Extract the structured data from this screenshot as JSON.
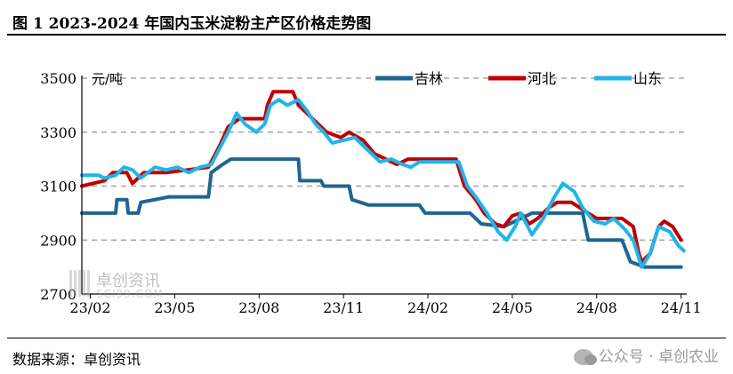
{
  "header": {
    "title": "图 1  2023-2024 年国内玉米淀粉主产区价格走势图"
  },
  "footer": {
    "source": "数据来源：卓创资讯",
    "wechat": "公众号 · 卓创农业"
  },
  "watermark": {
    "name": "卓创资讯",
    "url": "SCI99.COM"
  },
  "chart_data": {
    "type": "line",
    "ylabel": "元/吨",
    "ylim": [
      2700,
      3500
    ],
    "yticks": [
      2700,
      2900,
      3100,
      3300,
      3500
    ],
    "x_ticks": [
      "23/02",
      "23/05",
      "23/08",
      "23/11",
      "24/02",
      "24/05",
      "24/08",
      "24/11"
    ],
    "x_range": [
      0,
      21.5
    ],
    "grid": "horizontal-dashed",
    "legend": "top-right",
    "series": [
      {
        "name": "吉林",
        "color": "#1f6591",
        "points": [
          [
            0,
            3000
          ],
          [
            1.2,
            3000
          ],
          [
            1.25,
            3050
          ],
          [
            1.6,
            3050
          ],
          [
            1.65,
            3000
          ],
          [
            2.0,
            3000
          ],
          [
            2.1,
            3040
          ],
          [
            3.1,
            3060
          ],
          [
            4.5,
            3060
          ],
          [
            4.6,
            3150
          ],
          [
            5.0,
            3180
          ],
          [
            5.3,
            3200
          ],
          [
            7.2,
            3200
          ],
          [
            7.7,
            3200
          ],
          [
            7.75,
            3120
          ],
          [
            8.5,
            3120
          ],
          [
            8.6,
            3100
          ],
          [
            9.5,
            3100
          ],
          [
            9.6,
            3050
          ],
          [
            10.2,
            3030
          ],
          [
            12.0,
            3030
          ],
          [
            12.2,
            3000
          ],
          [
            13.8,
            3000
          ],
          [
            14.2,
            2960
          ],
          [
            15.0,
            2950
          ],
          [
            16.0,
            3000
          ],
          [
            17.8,
            3000
          ],
          [
            18.0,
            2900
          ],
          [
            19.2,
            2900
          ],
          [
            19.5,
            2820
          ],
          [
            20.0,
            2800
          ],
          [
            21.3,
            2800
          ]
        ]
      },
      {
        "name": "河北",
        "color": "#c00000",
        "points": [
          [
            0,
            3100
          ],
          [
            0.8,
            3120
          ],
          [
            1.1,
            3150
          ],
          [
            1.6,
            3150
          ],
          [
            1.8,
            3110
          ],
          [
            2.2,
            3150
          ],
          [
            3.0,
            3150
          ],
          [
            4.5,
            3170
          ],
          [
            4.9,
            3250
          ],
          [
            5.2,
            3320
          ],
          [
            5.6,
            3350
          ],
          [
            6.5,
            3350
          ],
          [
            6.6,
            3400
          ],
          [
            6.8,
            3450
          ],
          [
            7.5,
            3450
          ],
          [
            7.7,
            3400
          ],
          [
            8.2,
            3350
          ],
          [
            8.7,
            3300
          ],
          [
            9.2,
            3280
          ],
          [
            9.5,
            3300
          ],
          [
            10.0,
            3270
          ],
          [
            10.4,
            3220
          ],
          [
            10.8,
            3200
          ],
          [
            11.2,
            3180
          ],
          [
            11.6,
            3200
          ],
          [
            13.3,
            3200
          ],
          [
            13.6,
            3100
          ],
          [
            14.0,
            3050
          ],
          [
            14.3,
            3000
          ],
          [
            14.7,
            2960
          ],
          [
            15.0,
            2950
          ],
          [
            15.3,
            2990
          ],
          [
            15.6,
            3000
          ],
          [
            15.9,
            2960
          ],
          [
            16.2,
            2980
          ],
          [
            16.6,
            3020
          ],
          [
            16.9,
            3040
          ],
          [
            17.4,
            3040
          ],
          [
            17.7,
            3020
          ],
          [
            18.0,
            3000
          ],
          [
            18.3,
            2980
          ],
          [
            19.2,
            2980
          ],
          [
            19.6,
            2950
          ],
          [
            19.8,
            2850
          ],
          [
            19.9,
            2820
          ],
          [
            20.2,
            2850
          ],
          [
            20.5,
            2950
          ],
          [
            20.7,
            2970
          ],
          [
            21.0,
            2950
          ],
          [
            21.3,
            2900
          ]
        ]
      },
      {
        "name": "山东",
        "color": "#21b4ea",
        "points": [
          [
            0,
            3140
          ],
          [
            0.6,
            3140
          ],
          [
            0.8,
            3130
          ],
          [
            1.2,
            3140
          ],
          [
            1.5,
            3170
          ],
          [
            1.8,
            3160
          ],
          [
            2.1,
            3130
          ],
          [
            2.6,
            3170
          ],
          [
            3.0,
            3160
          ],
          [
            3.4,
            3170
          ],
          [
            3.8,
            3150
          ],
          [
            4.2,
            3170
          ],
          [
            4.6,
            3180
          ],
          [
            4.9,
            3240
          ],
          [
            5.2,
            3300
          ],
          [
            5.5,
            3370
          ],
          [
            5.8,
            3330
          ],
          [
            6.2,
            3300
          ],
          [
            6.5,
            3330
          ],
          [
            6.7,
            3400
          ],
          [
            7.0,
            3420
          ],
          [
            7.3,
            3400
          ],
          [
            7.7,
            3420
          ],
          [
            8.0,
            3380
          ],
          [
            8.3,
            3330
          ],
          [
            8.6,
            3300
          ],
          [
            8.9,
            3260
          ],
          [
            9.3,
            3270
          ],
          [
            9.7,
            3280
          ],
          [
            10.2,
            3230
          ],
          [
            10.6,
            3190
          ],
          [
            11.0,
            3200
          ],
          [
            11.4,
            3180
          ],
          [
            11.7,
            3170
          ],
          [
            12.0,
            3190
          ],
          [
            13.4,
            3190
          ],
          [
            13.7,
            3100
          ],
          [
            14.0,
            3060
          ],
          [
            14.4,
            3000
          ],
          [
            14.8,
            2930
          ],
          [
            15.1,
            2900
          ],
          [
            15.4,
            2950
          ],
          [
            15.6,
            3000
          ],
          [
            16.0,
            2920
          ],
          [
            16.4,
            2980
          ],
          [
            16.8,
            3060
          ],
          [
            17.1,
            3110
          ],
          [
            17.5,
            3080
          ],
          [
            17.8,
            3020
          ],
          [
            18.2,
            2970
          ],
          [
            18.6,
            2960
          ],
          [
            18.9,
            2980
          ],
          [
            19.3,
            2940
          ],
          [
            19.6,
            2900
          ],
          [
            19.9,
            2800
          ],
          [
            20.2,
            2850
          ],
          [
            20.5,
            2950
          ],
          [
            20.9,
            2930
          ],
          [
            21.2,
            2880
          ],
          [
            21.4,
            2860
          ]
        ]
      }
    ]
  }
}
